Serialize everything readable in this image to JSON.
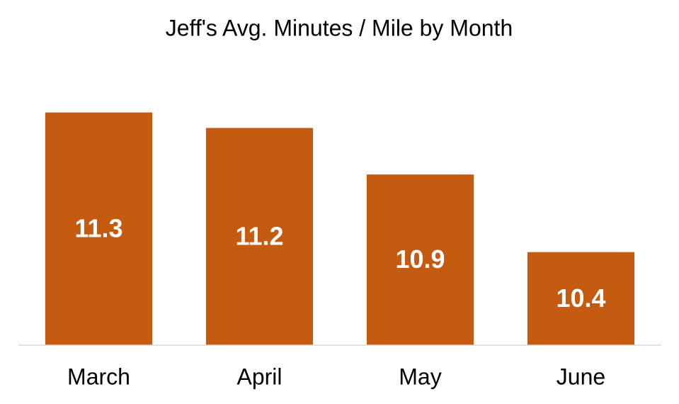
{
  "chart_data": {
    "type": "bar",
    "title": "Jeff's Avg. Minutes / Mile by Month",
    "categories": [
      "March",
      "April",
      "May",
      "June"
    ],
    "values": [
      11.3,
      11.2,
      10.9,
      10.4
    ],
    "color": "#c55a11",
    "ylim": [
      9.8,
      11.6
    ]
  }
}
